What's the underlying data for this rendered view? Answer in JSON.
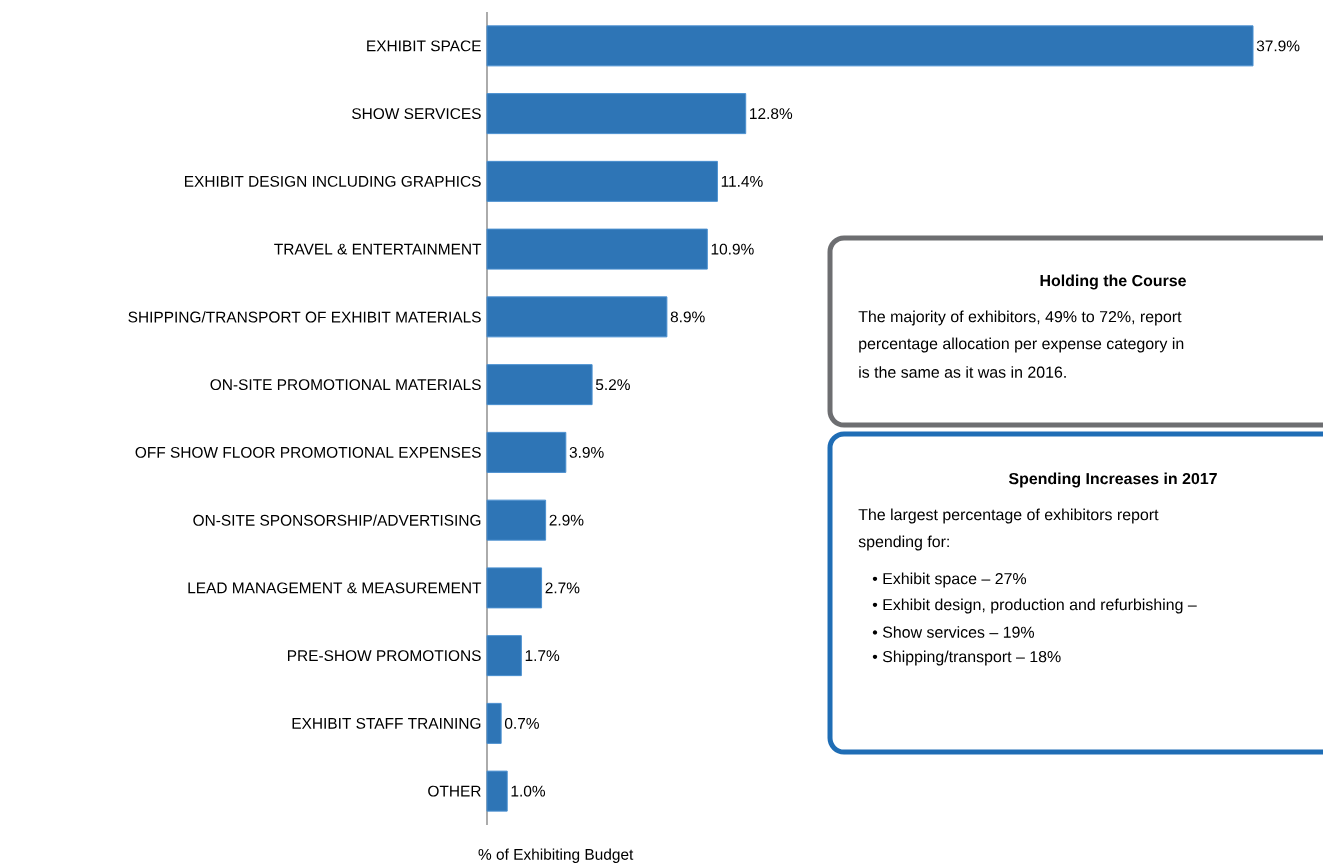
{
  "chart_data": {
    "type": "bar",
    "orientation": "horizontal",
    "xlabel": "% of Exhibiting Budget",
    "categories": [
      "EXHIBIT SPACE",
      "SHOW SERVICES",
      "EXHIBIT DESIGN INCLUDING GRAPHICS",
      "TRAVEL & ENTERTAINMENT",
      "SHIPPING/TRANSPORT OF EXHIBIT MATERIALS",
      "ON-SITE PROMOTIONAL MATERIALS",
      "OFF SHOW FLOOR PROMOTIONAL EXPENSES",
      "ON-SITE SPONSORSHIP/ADVERTISING",
      "LEAD MANAGEMENT & MEASUREMENT",
      "PRE-SHOW PROMOTIONS",
      "EXHIBIT STAFF TRAINING",
      "OTHER"
    ],
    "values": [
      37.9,
      12.8,
      11.4,
      10.9,
      8.9,
      5.2,
      3.9,
      2.9,
      2.7,
      1.7,
      0.7,
      1.0
    ],
    "value_labels": [
      "37.9%",
      "12.8%",
      "11.4%",
      "10.9%",
      "8.9%",
      "5.2%",
      "3.9%",
      "2.9%",
      "2.7%",
      "1.7%",
      "0.7%",
      "1.0%"
    ],
    "color": "#2e75b6",
    "tick_labels": "y",
    "annotations": [
      "Holding the Course",
      "The majority of exhibitors, 49% to 72%, report",
      "percentage allocation per expense category in",
      "is the same as it was in 2016.",
      "Spending Increases in 2017",
      "The largest percentage of exhibitors report",
      "spending for:",
      "• Exhibit space – 27%",
      "• Exhibit design, production and refurbishing –",
      "• Show services – 19%",
      "• Shipping/transport – 18%"
    ]
  }
}
